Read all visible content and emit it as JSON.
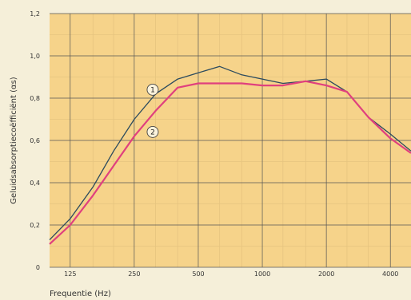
{
  "chart_data": {
    "type": "line",
    "title": "",
    "xlabel": "Frequentie (Hz)",
    "ylabel": "Geluidsabsorptiecoëfficiënt (αs)",
    "x_tick_labels": [
      "125",
      "250",
      "500",
      "1000",
      "2000",
      "4000"
    ],
    "y_tick_labels": [
      "0",
      "0,2",
      "0,4",
      "0,6",
      "0,8",
      "1,0",
      "1,2"
    ],
    "x_scale": "log",
    "xlim": [
      100,
      5000
    ],
    "ylim": [
      0,
      1.2
    ],
    "grid": true,
    "series": [
      {
        "name": "1",
        "color": "#2a4a5e",
        "x": [
          100,
          125,
          160,
          200,
          250,
          315,
          400,
          500,
          630,
          800,
          1000,
          1250,
          1600,
          2000,
          2500,
          3150,
          4000,
          5000
        ],
        "y": [
          0.13,
          0.23,
          0.38,
          0.55,
          0.7,
          0.82,
          0.89,
          0.92,
          0.95,
          0.91,
          0.89,
          0.87,
          0.88,
          0.89,
          0.83,
          0.71,
          0.63,
          0.55
        ]
      },
      {
        "name": "2",
        "color": "#e0407e",
        "x": [
          100,
          125,
          160,
          200,
          250,
          315,
          400,
          500,
          630,
          800,
          1000,
          1250,
          1600,
          2000,
          2500,
          3150,
          4000,
          5000
        ],
        "y": [
          0.11,
          0.2,
          0.34,
          0.48,
          0.62,
          0.74,
          0.85,
          0.87,
          0.87,
          0.87,
          0.86,
          0.86,
          0.88,
          0.86,
          0.83,
          0.71,
          0.61,
          0.54
        ]
      }
    ],
    "series_markers": [
      {
        "label": "1",
        "series": "1",
        "x": 500,
        "y": 0.84
      },
      {
        "label": "2",
        "series": "2",
        "x": 500,
        "y": 0.64
      }
    ],
    "colors": {
      "plot_background": "#f6d38a",
      "grid_major": "#555555",
      "grid_minor": "#e6c47f",
      "page_background": "#f5efd9"
    }
  }
}
